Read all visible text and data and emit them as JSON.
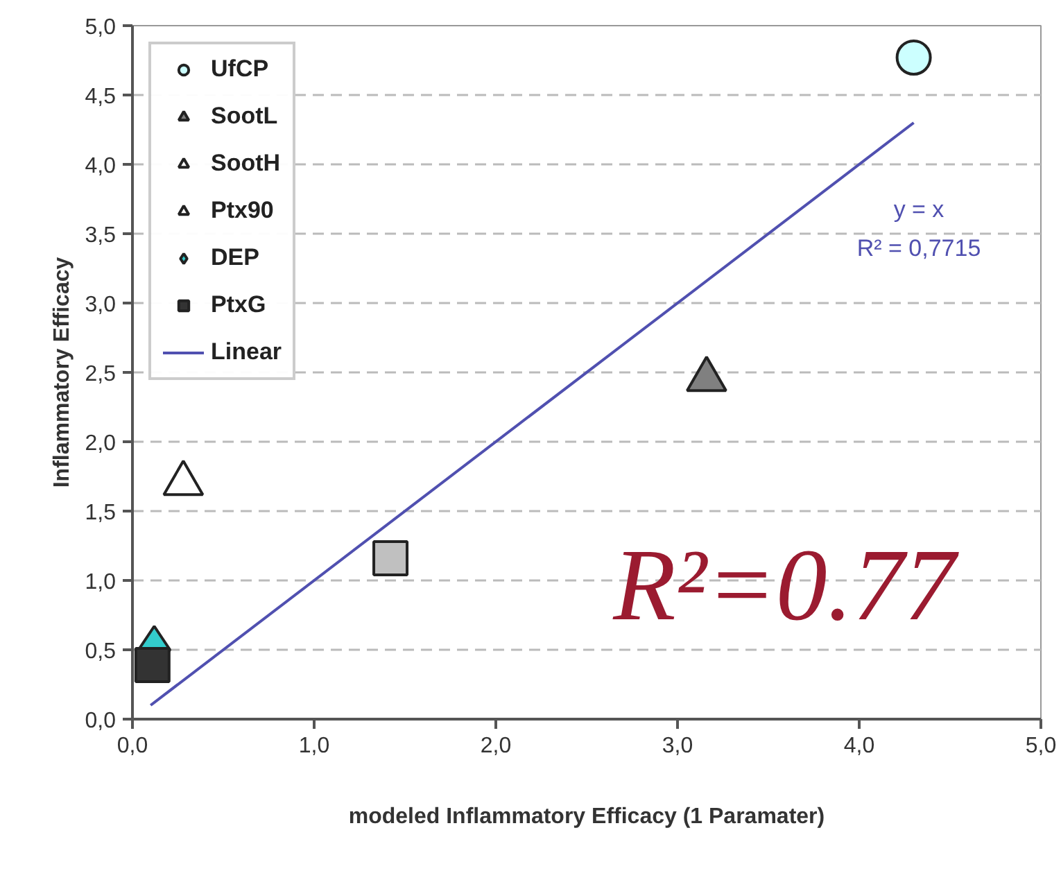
{
  "chart_data": {
    "type": "scatter",
    "xlabel": "modeled Inflammatory Efficacy (1 Paramater)",
    "ylabel": "Inflammatory Efficacy",
    "xlim": [
      0,
      5
    ],
    "ylim": [
      0,
      5
    ],
    "xticks": [
      {
        "value": 0,
        "label": "0,0"
      },
      {
        "value": 1,
        "label": "1,0"
      },
      {
        "value": 2,
        "label": "2,0"
      },
      {
        "value": 3,
        "label": "3,0"
      },
      {
        "value": 4,
        "label": "4,0"
      },
      {
        "value": 5,
        "label": "5,0"
      }
    ],
    "yticks": [
      {
        "value": 0,
        "label": "0,0"
      },
      {
        "value": 0.5,
        "label": "0,5"
      },
      {
        "value": 1,
        "label": "1,0"
      },
      {
        "value": 1.5,
        "label": "1,5"
      },
      {
        "value": 2,
        "label": "2,0"
      },
      {
        "value": 2.5,
        "label": "2,5"
      },
      {
        "value": 3,
        "label": "3,0"
      },
      {
        "value": 3.5,
        "label": "3,5"
      },
      {
        "value": 4,
        "label": "4,0"
      },
      {
        "value": 4.5,
        "label": "4,5"
      },
      {
        "value": 5,
        "label": "5,0"
      }
    ],
    "grid": "y",
    "legend": "top left",
    "series": [
      {
        "name": "UfCP",
        "marker": "circle",
        "color": "#ccffff",
        "x": [
          4.3
        ],
        "values": [
          4.77
        ]
      },
      {
        "name": "SootL",
        "marker": "triangle",
        "color": "#808080",
        "x": [
          3.16
        ],
        "values": [
          2.45
        ]
      },
      {
        "name": "SootH",
        "marker": "triangle",
        "color": "#ffffff",
        "x": [
          0.28
        ],
        "values": [
          1.7
        ]
      },
      {
        "name": "Ptx90",
        "marker": "triangle",
        "color": "#ffffff",
        "x": [
          null
        ],
        "values": [
          null
        ]
      },
      {
        "name": "DEP",
        "marker": "diamond",
        "color": "#33cccc",
        "x": [
          0.12
        ],
        "values": [
          0.5
        ]
      },
      {
        "name": "PtxG",
        "marker": "square",
        "color": "#333333",
        "x": [
          0.11
        ],
        "values": [
          0.39
        ]
      },
      {
        "name": "Linear",
        "type": "line",
        "color": "#5050b0",
        "x": [
          0.1,
          4.3
        ],
        "values": [
          0.1,
          4.3
        ]
      },
      {
        "marker": "square",
        "color": "#c0c0c0",
        "x": [
          1.42
        ],
        "values": [
          1.16
        ]
      }
    ],
    "annotations": [
      "y = x",
      "R² = 0,7715",
      "R²=0.77"
    ]
  }
}
